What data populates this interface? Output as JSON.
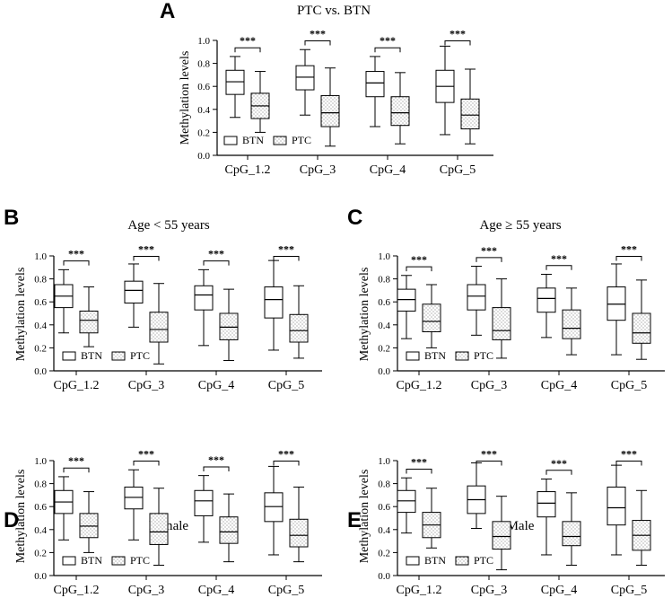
{
  "colors": {
    "ink": "#000000",
    "btn_fill": "#ffffff",
    "ptc_fill": "#ffffff",
    "ptc_dots": "#555555"
  },
  "chart_data": [
    {
      "type": "box",
      "panel": "A",
      "title": "PTC vs. BTN",
      "xlabel": "",
      "ylabel": "Methylation levels",
      "ylim": [
        0,
        1.0
      ],
      "yticks": [
        "0.0",
        "0.2",
        "0.4",
        "0.6",
        "0.8",
        "1.0"
      ],
      "categories": [
        "CpG_1.2",
        "CpG_3",
        "CpG_4",
        "CpG_5"
      ],
      "legend": [
        "BTN",
        "PTC"
      ],
      "significance": [
        "***",
        "***",
        "***",
        "***"
      ],
      "series": [
        {
          "name": "BTN",
          "boxes": [
            {
              "min": 0.33,
              "q1": 0.53,
              "median": 0.64,
              "q3": 0.74,
              "max": 0.86
            },
            {
              "min": 0.35,
              "q1": 0.57,
              "median": 0.68,
              "q3": 0.78,
              "max": 0.92
            },
            {
              "min": 0.25,
              "q1": 0.51,
              "median": 0.63,
              "q3": 0.73,
              "max": 0.86
            },
            {
              "min": 0.18,
              "q1": 0.46,
              "median": 0.6,
              "q3": 0.74,
              "max": 0.95
            }
          ]
        },
        {
          "name": "PTC",
          "boxes": [
            {
              "min": 0.2,
              "q1": 0.32,
              "median": 0.43,
              "q3": 0.54,
              "max": 0.73
            },
            {
              "min": 0.08,
              "q1": 0.25,
              "median": 0.37,
              "q3": 0.52,
              "max": 0.76
            },
            {
              "min": 0.1,
              "q1": 0.26,
              "median": 0.37,
              "q3": 0.51,
              "max": 0.72
            },
            {
              "min": 0.1,
              "q1": 0.23,
              "median": 0.35,
              "q3": 0.49,
              "max": 0.75
            }
          ]
        }
      ]
    },
    {
      "type": "box",
      "panel": "B",
      "title": "Age < 55 years",
      "xlabel": "",
      "ylabel": "Methylation levels",
      "ylim": [
        0,
        1.0
      ],
      "yticks": [
        "0.0",
        "0.2",
        "0.4",
        "0.6",
        "0.8",
        "1.0"
      ],
      "categories": [
        "CpG_1.2",
        "CpG_3",
        "CpG_4",
        "CpG_5"
      ],
      "legend": [
        "BTN",
        "PTC"
      ],
      "significance": [
        "***",
        "***",
        "***",
        "***"
      ],
      "series": [
        {
          "name": "BTN",
          "boxes": [
            {
              "min": 0.33,
              "q1": 0.55,
              "median": 0.65,
              "q3": 0.75,
              "max": 0.88
            },
            {
              "min": 0.38,
              "q1": 0.59,
              "median": 0.7,
              "q3": 0.78,
              "max": 0.93
            },
            {
              "min": 0.22,
              "q1": 0.53,
              "median": 0.66,
              "q3": 0.74,
              "max": 0.88
            },
            {
              "min": 0.18,
              "q1": 0.46,
              "median": 0.62,
              "q3": 0.73,
              "max": 0.96
            }
          ]
        },
        {
          "name": "PTC",
          "boxes": [
            {
              "min": 0.21,
              "q1": 0.33,
              "median": 0.44,
              "q3": 0.52,
              "max": 0.73
            },
            {
              "min": 0.06,
              "q1": 0.25,
              "median": 0.36,
              "q3": 0.51,
              "max": 0.76
            },
            {
              "min": 0.09,
              "q1": 0.27,
              "median": 0.38,
              "q3": 0.5,
              "max": 0.71
            },
            {
              "min": 0.11,
              "q1": 0.25,
              "median": 0.35,
              "q3": 0.49,
              "max": 0.74
            }
          ]
        }
      ]
    },
    {
      "type": "box",
      "panel": "C",
      "title": "Age ≥ 55 years",
      "xlabel": "",
      "ylabel": "Methylation levels",
      "ylim": [
        0,
        1.0
      ],
      "yticks": [
        "0.0",
        "0.2",
        "0.4",
        "0.6",
        "0.8",
        "1.0"
      ],
      "categories": [
        "CpG_1.2",
        "CpG_3",
        "CpG_4",
        "CpG_5"
      ],
      "legend": [
        "BTN",
        "PTC"
      ],
      "significance": [
        "***",
        "***",
        "***",
        "***"
      ],
      "series": [
        {
          "name": "BTN",
          "boxes": [
            {
              "min": 0.28,
              "q1": 0.52,
              "median": 0.62,
              "q3": 0.71,
              "max": 0.83
            },
            {
              "min": 0.31,
              "q1": 0.53,
              "median": 0.65,
              "q3": 0.75,
              "max": 0.91
            },
            {
              "min": 0.29,
              "q1": 0.51,
              "median": 0.63,
              "q3": 0.72,
              "max": 0.84
            },
            {
              "min": 0.14,
              "q1": 0.44,
              "median": 0.58,
              "q3": 0.73,
              "max": 0.93
            }
          ]
        },
        {
          "name": "PTC",
          "boxes": [
            {
              "min": 0.2,
              "q1": 0.34,
              "median": 0.43,
              "q3": 0.58,
              "max": 0.75
            },
            {
              "min": 0.11,
              "q1": 0.27,
              "median": 0.35,
              "q3": 0.55,
              "max": 0.8
            },
            {
              "min": 0.14,
              "q1": 0.28,
              "median": 0.37,
              "q3": 0.53,
              "max": 0.72
            },
            {
              "min": 0.1,
              "q1": 0.24,
              "median": 0.33,
              "q3": 0.5,
              "max": 0.79
            }
          ]
        }
      ]
    },
    {
      "type": "box",
      "panel": "D",
      "title": "Female",
      "xlabel": "",
      "ylabel": "Methylation levels",
      "ylim": [
        0,
        1.0
      ],
      "yticks": [
        "0.0",
        "0.2",
        "0.4",
        "0.6",
        "0.8",
        "1.0"
      ],
      "categories": [
        "CpG_1.2",
        "CpG_3",
        "CpG_4",
        "CpG_5"
      ],
      "legend": [
        "BTN",
        "PTC"
      ],
      "significance": [
        "***",
        "***",
        "***",
        "***"
      ],
      "series": [
        {
          "name": "BTN",
          "boxes": [
            {
              "min": 0.31,
              "q1": 0.54,
              "median": 0.64,
              "q3": 0.74,
              "max": 0.86
            },
            {
              "min": 0.31,
              "q1": 0.58,
              "median": 0.68,
              "q3": 0.77,
              "max": 0.92
            },
            {
              "min": 0.29,
              "q1": 0.52,
              "median": 0.65,
              "q3": 0.74,
              "max": 0.87
            },
            {
              "min": 0.18,
              "q1": 0.47,
              "median": 0.6,
              "q3": 0.72,
              "max": 0.95
            }
          ]
        },
        {
          "name": "PTC",
          "boxes": [
            {
              "min": 0.2,
              "q1": 0.33,
              "median": 0.43,
              "q3": 0.54,
              "max": 0.73
            },
            {
              "min": 0.09,
              "q1": 0.27,
              "median": 0.38,
              "q3": 0.54,
              "max": 0.76
            },
            {
              "min": 0.12,
              "q1": 0.28,
              "median": 0.38,
              "q3": 0.51,
              "max": 0.71
            },
            {
              "min": 0.12,
              "q1": 0.25,
              "median": 0.35,
              "q3": 0.49,
              "max": 0.77
            }
          ]
        }
      ]
    },
    {
      "type": "box",
      "panel": "E",
      "title": "Male",
      "xlabel": "",
      "ylabel": "Methylation levels",
      "ylim": [
        0,
        1.0
      ],
      "yticks": [
        "0.0",
        "0.2",
        "0.4",
        "0.6",
        "0.8",
        "1.0"
      ],
      "categories": [
        "CpG_1.2",
        "CpG_3",
        "CpG_4",
        "CpG_5"
      ],
      "legend": [
        "BTN",
        "PTC"
      ],
      "significance": [
        "***",
        "***",
        "***",
        "***"
      ],
      "series": [
        {
          "name": "BTN",
          "boxes": [
            {
              "min": 0.37,
              "q1": 0.55,
              "median": 0.65,
              "q3": 0.74,
              "max": 0.85
            },
            {
              "min": 0.41,
              "q1": 0.54,
              "median": 0.66,
              "q3": 0.78,
              "max": 0.98
            },
            {
              "min": 0.18,
              "q1": 0.51,
              "median": 0.63,
              "q3": 0.73,
              "max": 0.84
            },
            {
              "min": 0.18,
              "q1": 0.44,
              "median": 0.59,
              "q3": 0.77,
              "max": 0.96
            }
          ]
        },
        {
          "name": "PTC",
          "boxes": [
            {
              "min": 0.24,
              "q1": 0.33,
              "median": 0.44,
              "q3": 0.55,
              "max": 0.76
            },
            {
              "min": 0.05,
              "q1": 0.23,
              "median": 0.34,
              "q3": 0.47,
              "max": 0.69
            },
            {
              "min": 0.09,
              "q1": 0.26,
              "median": 0.34,
              "q3": 0.47,
              "max": 0.72
            },
            {
              "min": 0.09,
              "q1": 0.22,
              "median": 0.35,
              "q3": 0.48,
              "max": 0.74
            }
          ]
        }
      ]
    }
  ]
}
